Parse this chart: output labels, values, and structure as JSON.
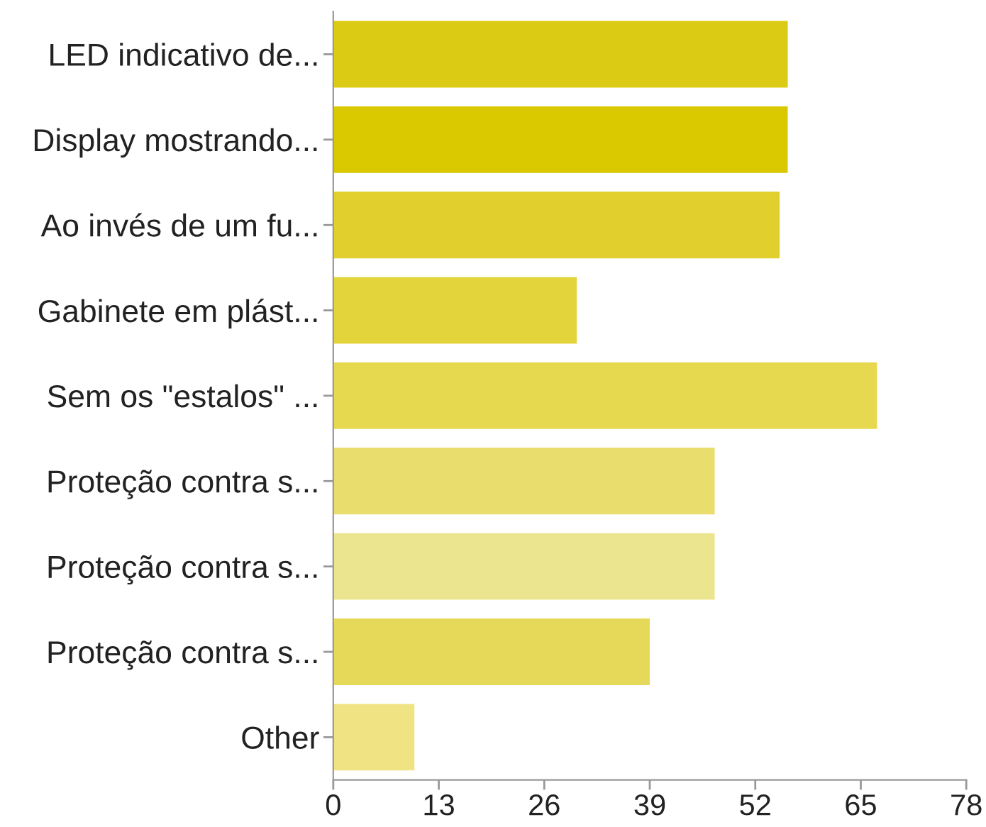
{
  "chart_data": {
    "type": "bar",
    "orientation": "horizontal",
    "categories": [
      "LED indicativo de...",
      "Display mostrando...",
      "Ao invés de um fu...",
      "Gabinete em plást...",
      "Sem os \"estalos\" ...",
      "Proteção contra s...",
      "Proteção contra s...",
      "Proteção contra s...",
      "Other"
    ],
    "values": [
      56,
      56,
      55,
      30,
      67,
      47,
      47,
      39,
      10
    ],
    "colors": [
      "#dccb14",
      "#dac900",
      "#e0cf2c",
      "#e3d43c",
      "#e6d84f",
      "#e9dd6d",
      "#ece58f",
      "#e6d95a",
      "#efe384"
    ],
    "xlim": [
      0,
      78
    ],
    "xticks": [
      0,
      13,
      26,
      39,
      52,
      65,
      78
    ],
    "grid": false,
    "legend": false
  }
}
